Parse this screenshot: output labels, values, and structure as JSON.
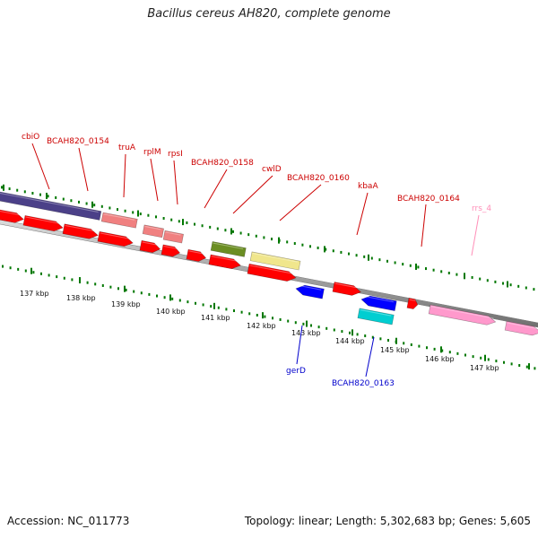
{
  "title": "Bacillus cereus AH820, complete genome",
  "accession_text": "Accession: NC_011773",
  "summary_text": "Topology: linear; Length: 5,302,683 bp; Genes: 5,605",
  "colors": {
    "red_gene": "#ff0000",
    "pink_gene": "#f08080",
    "purple_gene": "#4b4088",
    "olive_gene": "#6b8e23",
    "khaki_gene": "#f0e68c",
    "blue_gene": "#0000ff",
    "cyan_gene": "#00ced1",
    "rrna_gene": "#ff99cc",
    "label_red": "#cc0000",
    "label_blue": "#0000cc",
    "label_pink": "#ff8fb8",
    "tick_green": "#007700",
    "backbone": "#888888"
  },
  "scale": {
    "unit": "kbp",
    "tick_labels": [
      "137 kbp",
      "138 kbp",
      "139 kbp",
      "140 kbp",
      "141 kbp",
      "142 kbp",
      "143 kbp",
      "144 kbp",
      "145 kbp",
      "146 kbp",
      "147 kbp"
    ]
  },
  "labels": {
    "forward": [
      "cbiO",
      "BCAH820_0154",
      "truA",
      "rplM",
      "rpsI",
      "BCAH820_0158",
      "cwlD",
      "BCAH820_0160",
      "kbaA",
      "BCAH820_0164",
      "rrs_4"
    ],
    "reverse": [
      "gerD",
      "BCAH820_0163"
    ]
  }
}
